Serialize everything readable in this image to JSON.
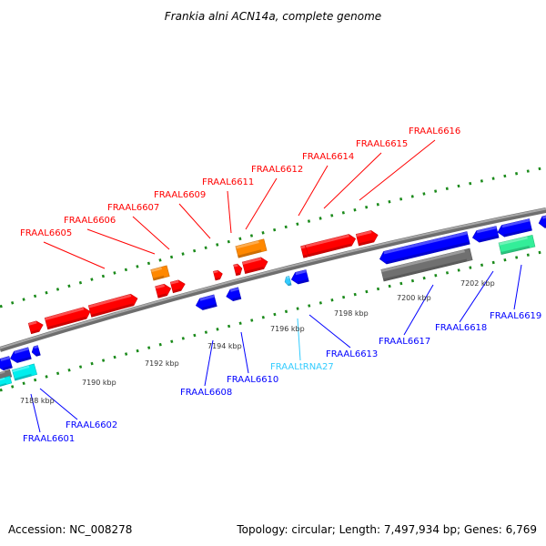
{
  "title": "Frankia alni ACN14a, complete genome",
  "footer": {
    "accession": "Accession: NC_008278",
    "summary": "Topology: circular; Length: 7,497,934 bp; Genes: 6,769"
  },
  "scale_labels": [
    "7188 kbp",
    "7190 kbp",
    "7192 kbp",
    "7194 kbp",
    "7196 kbp",
    "7198 kbp",
    "7200 kbp",
    "7202 kbp"
  ],
  "forward_genes": [
    "FRAAL6605",
    "FRAAL6606",
    "FRAAL6607",
    "FRAAL6609",
    "FRAAL6611",
    "FRAAL6612",
    "FRAAL6614",
    "FRAAL6615",
    "FRAAL6616"
  ],
  "reverse_genes": [
    "FRAAL6601",
    "FRAAL6602",
    "FRAAL6608",
    "FRAAL6610",
    "FRAALtRNA27",
    "FRAAL6613",
    "FRAAL6617",
    "FRAAL6618",
    "FRAAL6619"
  ],
  "colors": {
    "forward": "#ff0000",
    "reverse": "#0000ff",
    "trna": "#33ccff",
    "other_orange": "#ff8800",
    "other_gray": "#707070",
    "other_green": "#33ee99",
    "other_cyan": "#00eeee",
    "backbone": "#888888",
    "ticks": "#1a8a1a"
  }
}
